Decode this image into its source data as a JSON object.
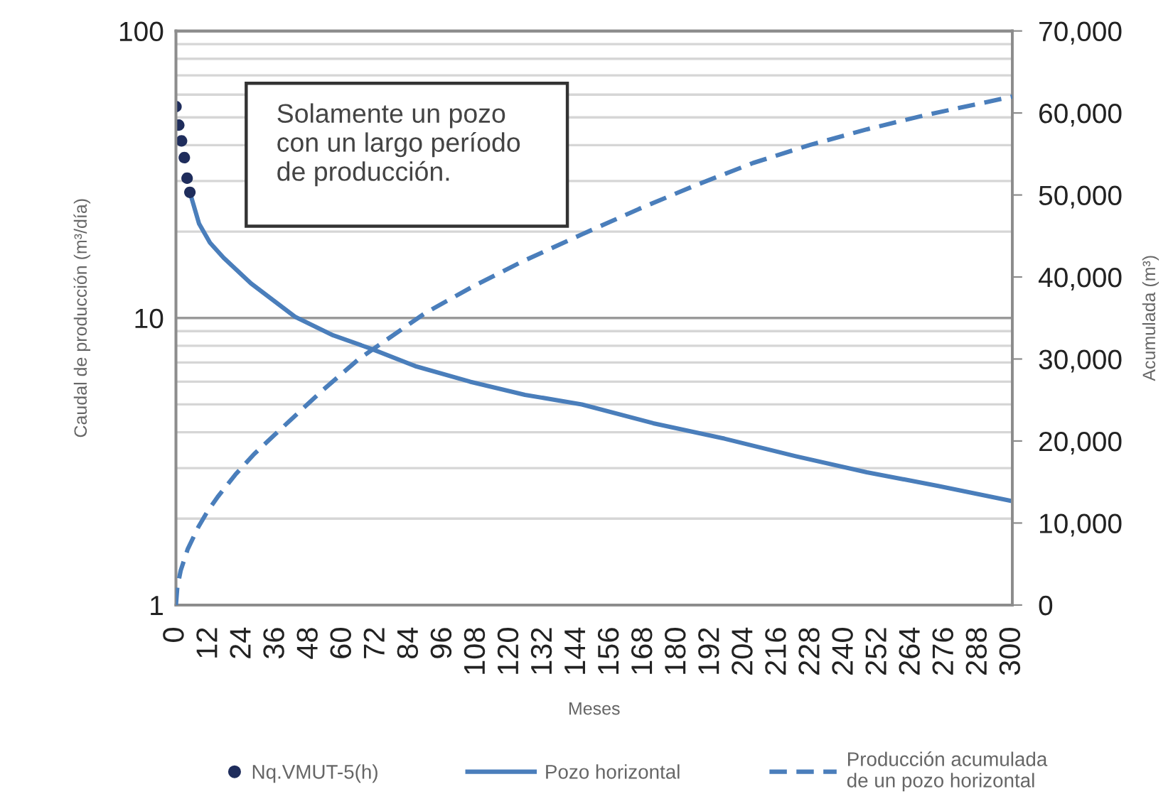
{
  "chart_data": {
    "type": "line",
    "xlabel": "Meses",
    "ylabel": "Caudal de producción (m³/día)",
    "y2label": "Acumulada (m³)",
    "annotations": [
      "Solamente un pozo\ncon un largo período\nde producción."
    ],
    "log": "y",
    "grid": "y",
    "legend": "bottom",
    "xlim": [
      0,
      300
    ],
    "xticks": [
      0,
      12,
      24,
      36,
      48,
      60,
      72,
      84,
      96,
      108,
      120,
      132,
      144,
      156,
      168,
      180,
      192,
      204,
      216,
      228,
      240,
      252,
      264,
      276,
      288,
      300
    ],
    "ylim": [
      1,
      100
    ],
    "yticks": [
      1,
      10,
      100
    ],
    "y2lim": [
      0,
      70000
    ],
    "y2ticks": [
      0,
      {
        "value": 10000,
        "label": "10,000"
      },
      {
        "value": 20000,
        "label": "20,000"
      },
      {
        "value": 30000,
        "label": "30,000"
      },
      {
        "value": 40000,
        "label": "40,000"
      },
      {
        "value": 50000,
        "label": "50,000"
      },
      {
        "value": 60000,
        "label": "60,000"
      },
      {
        "value": 70000,
        "label": "70,000"
      }
    ],
    "series": [
      {
        "name": "Nq.VMUT-5(h)",
        "type": "scatter",
        "marker": "circle",
        "color": "#1f2d5c",
        "x": [
          0,
          1,
          2,
          3,
          4,
          5
        ],
        "values": [
          54.5,
          47,
          41.4,
          36.2,
          30.7,
          27.4
        ]
      },
      {
        "name": "Pozo horizontal",
        "line_style": "solid",
        "color": "#4a7ebb",
        "x": [
          5,
          8.3,
          12.2,
          17.1,
          26.9,
          42.7,
          56.4,
          70.2,
          85.8,
          105.5,
          125.2,
          145.6,
          171.2,
          196.7,
          222.3,
          247.8,
          273.4,
          300
        ],
        "values": [
          27.4,
          21.3,
          18.3,
          16.2,
          13.2,
          10.1,
          8.7,
          7.8,
          6.8,
          6.0,
          5.4,
          5.0,
          4.3,
          3.8,
          3.3,
          2.9,
          2.6,
          2.3
        ]
      },
      {
        "name": "Producción acumulada\nde un pozo horizontal",
        "axis": "y2",
        "line_style": "dashed",
        "color": "#4a7ebb",
        "x": [
          0,
          0.5,
          1.7,
          4.2,
          8,
          11.1,
          15,
          21.3,
          28,
          34.9,
          52,
          65.6,
          89.4,
          106.3,
          123.7,
          145.6,
          166.1,
          186.5,
          207,
          227.4,
          247.8,
          268.3,
          300
        ],
        "values": [
          0,
          2200,
          4200,
          6800,
          9500,
          11300,
          13200,
          15900,
          18400,
          20600,
          26000,
          30000,
          35600,
          38800,
          41800,
          45200,
          48300,
          51200,
          53900,
          56100,
          58000,
          59700,
          62000
        ]
      }
    ]
  }
}
